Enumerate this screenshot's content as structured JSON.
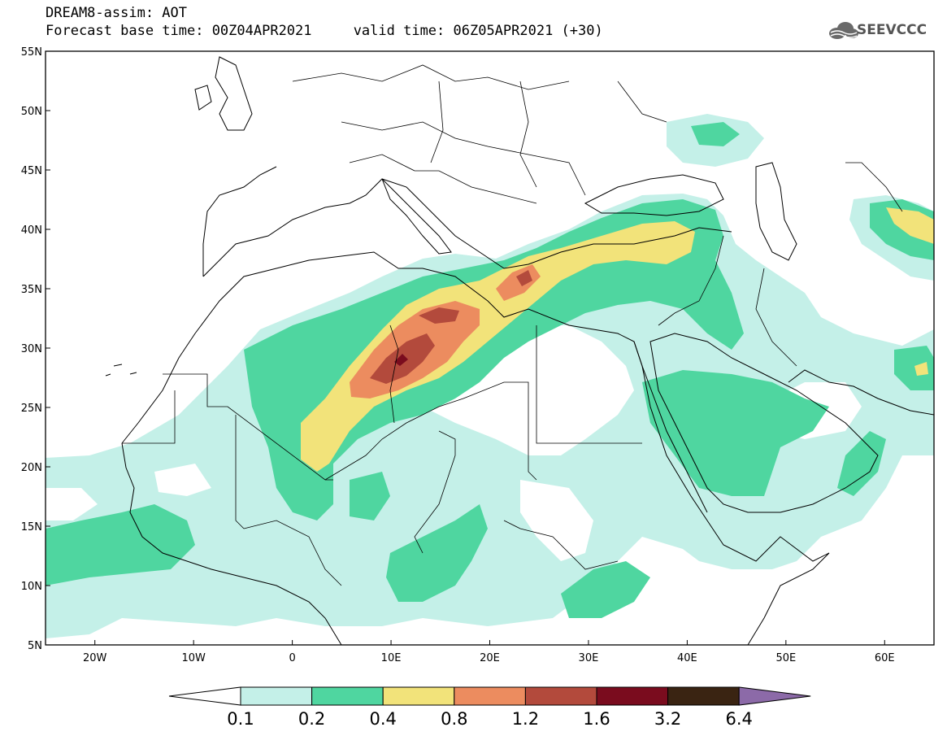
{
  "header": {
    "line1": "DREAM8-assim: AOT",
    "line2": "Forecast base time: 00Z04APR2021     valid time: 06Z05APR2021 (+30)",
    "logo_text": "SEEVCCC"
  },
  "map": {
    "lon_range": [
      -25,
      65
    ],
    "lat_range": [
      5,
      55
    ],
    "lat_ticks": [
      {
        "value": 55,
        "label": "55N"
      },
      {
        "value": 50,
        "label": "50N"
      },
      {
        "value": 45,
        "label": "45N"
      },
      {
        "value": 40,
        "label": "40N"
      },
      {
        "value": 35,
        "label": "35N"
      },
      {
        "value": 30,
        "label": "30N"
      },
      {
        "value": 25,
        "label": "25N"
      },
      {
        "value": 20,
        "label": "20N"
      },
      {
        "value": 15,
        "label": "15N"
      },
      {
        "value": 10,
        "label": "10N"
      },
      {
        "value": 5,
        "label": "5N"
      }
    ],
    "lon_ticks": [
      {
        "value": -20,
        "label": "20W"
      },
      {
        "value": -10,
        "label": "10W"
      },
      {
        "value": 0,
        "label": "0"
      },
      {
        "value": 10,
        "label": "10E"
      },
      {
        "value": 20,
        "label": "20E"
      },
      {
        "value": 30,
        "label": "30E"
      },
      {
        "value": 40,
        "label": "40E"
      },
      {
        "value": 50,
        "label": "50E"
      },
      {
        "value": 60,
        "label": "60E"
      }
    ]
  },
  "legend": {
    "levels": [
      "0.1",
      "0.2",
      "0.4",
      "0.8",
      "1.2",
      "1.6",
      "3.2",
      "6.4"
    ],
    "colors": [
      "#c4f0e8",
      "#4fd6a0",
      "#f2e37a",
      "#ec8c5f",
      "#b34a3c",
      "#7a0c1e",
      "#3a2412",
      "#8c6aa8"
    ],
    "under_color": "#ffffff"
  }
}
